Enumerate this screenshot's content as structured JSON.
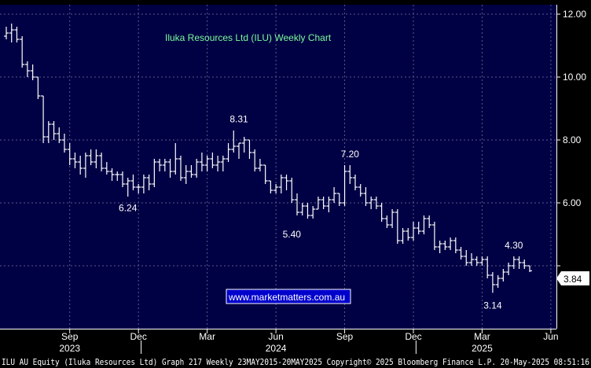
{
  "chart_data": {
    "type": "ohlc",
    "title": "Iluka Resources Ltd (ILU) Weekly Chart",
    "website": "www.marketmatters.com.au",
    "footer": "ILU AU Equity (Iluka Resources Ltd) Graph 217  Weekly 23MAY2015-20MAY2025 Copyright© 2025 Bloomberg Finance L.P. 20-May-2025 08:51:16",
    "last_value_label": "3.84",
    "ylim": [
      2.0,
      12.3
    ],
    "yticks": [
      {
        "value": 4.0,
        "label": ""
      },
      {
        "value": 6.0,
        "label": "6.00"
      },
      {
        "value": 8.0,
        "label": "8.00"
      },
      {
        "value": 10.0,
        "label": "10.00"
      },
      {
        "value": 12.0,
        "label": "12.00"
      }
    ],
    "month_ticks": [
      {
        "index": 12,
        "label": "Sep"
      },
      {
        "index": 25,
        "label": "Dec"
      },
      {
        "index": 38,
        "label": "Mar"
      },
      {
        "index": 51,
        "label": "Jun"
      },
      {
        "index": 64,
        "label": "Sep"
      },
      {
        "index": 77,
        "label": "Dec"
      },
      {
        "index": 90,
        "label": "Mar"
      },
      {
        "index": 103,
        "label": "Jun"
      }
    ],
    "year_labels": [
      {
        "index": 12,
        "label": "2023"
      },
      {
        "index": 51,
        "label": "2024"
      },
      {
        "index": 90,
        "label": "2025"
      }
    ],
    "year_separators": [
      25.5,
      77.5
    ],
    "annotations": [
      {
        "index": 23,
        "value": 6.24,
        "label": "6.24",
        "position": "below"
      },
      {
        "index": 44,
        "value": 8.31,
        "label": "8.31",
        "position": "above"
      },
      {
        "index": 54,
        "value": 5.4,
        "label": "5.40",
        "position": "below"
      },
      {
        "index": 65,
        "value": 7.2,
        "label": "7.20",
        "position": "above"
      },
      {
        "index": 92,
        "value": 3.14,
        "label": "3.14",
        "position": "below"
      },
      {
        "index": 96,
        "value": 4.3,
        "label": "4.30",
        "position": "above"
      }
    ],
    "series": [
      {
        "name": "ILU",
        "ohlc": [
          [
            11.3,
            11.6,
            11.2,
            11.4
          ],
          [
            11.4,
            11.7,
            11.1,
            11.5
          ],
          [
            11.5,
            11.6,
            11.1,
            11.2
          ],
          [
            11.2,
            11.3,
            10.3,
            10.4
          ],
          [
            10.4,
            10.5,
            10.0,
            10.2
          ],
          [
            10.2,
            10.4,
            9.9,
            10.0
          ],
          [
            10.0,
            10.0,
            9.3,
            9.4
          ],
          [
            9.4,
            9.4,
            7.9,
            8.1
          ],
          [
            8.1,
            8.6,
            7.9,
            8.5
          ],
          [
            8.5,
            8.6,
            8.0,
            8.2
          ],
          [
            8.2,
            8.4,
            7.9,
            8.0
          ],
          [
            8.0,
            8.2,
            7.6,
            7.7
          ],
          [
            7.7,
            7.9,
            7.2,
            7.4
          ],
          [
            7.4,
            7.6,
            7.1,
            7.3
          ],
          [
            7.3,
            7.5,
            6.9,
            7.1
          ],
          [
            7.1,
            7.6,
            6.8,
            7.5
          ],
          [
            7.5,
            7.7,
            7.2,
            7.3
          ],
          [
            7.3,
            7.7,
            7.1,
            7.5
          ],
          [
            7.5,
            7.6,
            7.0,
            7.1
          ],
          [
            7.1,
            7.3,
            6.9,
            7.0
          ],
          [
            7.0,
            7.1,
            6.7,
            6.9
          ],
          [
            6.9,
            7.0,
            6.7,
            6.9
          ],
          [
            6.9,
            7.0,
            6.5,
            6.6
          ],
          [
            6.6,
            6.8,
            6.2,
            6.7
          ],
          [
            6.7,
            6.9,
            6.4,
            6.5
          ],
          [
            6.5,
            6.6,
            6.3,
            6.5
          ],
          [
            6.5,
            6.9,
            6.3,
            6.8
          ],
          [
            6.8,
            6.9,
            6.4,
            6.6
          ],
          [
            6.6,
            7.4,
            6.5,
            7.3
          ],
          [
            7.3,
            7.4,
            7.0,
            7.2
          ],
          [
            7.2,
            7.4,
            7.0,
            7.3
          ],
          [
            7.3,
            7.4,
            6.8,
            7.0
          ],
          [
            7.0,
            7.9,
            6.9,
            7.4
          ],
          [
            7.4,
            7.5,
            6.7,
            6.8
          ],
          [
            6.8,
            7.2,
            6.6,
            7.0
          ],
          [
            7.0,
            7.2,
            6.8,
            6.9
          ],
          [
            6.9,
            7.4,
            6.8,
            7.3
          ],
          [
            7.3,
            7.6,
            7.0,
            7.2
          ],
          [
            7.2,
            7.5,
            7.0,
            7.4
          ],
          [
            7.4,
            7.6,
            7.1,
            7.2
          ],
          [
            7.2,
            7.5,
            7.0,
            7.3
          ],
          [
            7.3,
            7.5,
            7.0,
            7.4
          ],
          [
            7.4,
            7.9,
            7.3,
            7.7
          ],
          [
            7.7,
            8.3,
            7.6,
            7.8
          ],
          [
            7.8,
            7.9,
            7.4,
            7.9
          ],
          [
            7.9,
            8.1,
            7.6,
            8.0
          ],
          [
            8.0,
            8.0,
            7.4,
            7.6
          ],
          [
            7.6,
            7.7,
            7.0,
            7.1
          ],
          [
            7.1,
            7.4,
            7.0,
            7.2
          ],
          [
            7.2,
            7.2,
            6.6,
            6.7
          ],
          [
            6.7,
            6.7,
            6.3,
            6.4
          ],
          [
            6.4,
            6.6,
            6.3,
            6.5
          ],
          [
            6.5,
            6.9,
            6.3,
            6.8
          ],
          [
            6.8,
            6.9,
            6.4,
            6.7
          ],
          [
            6.7,
            6.8,
            6.0,
            6.1
          ],
          [
            6.1,
            6.3,
            5.6,
            5.7
          ],
          [
            5.7,
            6.0,
            5.6,
            5.9
          ],
          [
            5.9,
            6.0,
            5.5,
            5.6
          ],
          [
            5.6,
            5.9,
            5.5,
            5.8
          ],
          [
            5.8,
            6.2,
            5.8,
            6.1
          ],
          [
            6.1,
            6.2,
            5.8,
            5.9
          ],
          [
            5.9,
            6.2,
            5.7,
            6.1
          ],
          [
            6.1,
            6.5,
            6.0,
            6.3
          ],
          [
            6.3,
            6.3,
            5.9,
            6.0
          ],
          [
            6.0,
            7.2,
            5.9,
            7.0
          ],
          [
            7.0,
            7.2,
            6.6,
            6.8
          ],
          [
            6.8,
            6.9,
            6.4,
            6.5
          ],
          [
            6.5,
            6.6,
            6.2,
            6.3
          ],
          [
            6.3,
            6.5,
            5.9,
            6.0
          ],
          [
            6.0,
            6.2,
            5.8,
            6.1
          ],
          [
            6.1,
            6.2,
            5.8,
            5.9
          ],
          [
            5.9,
            6.0,
            5.4,
            5.5
          ],
          [
            5.5,
            5.6,
            5.2,
            5.3
          ],
          [
            5.3,
            5.8,
            5.2,
            5.7
          ],
          [
            5.7,
            5.8,
            4.7,
            4.8
          ],
          [
            4.8,
            5.2,
            4.7,
            5.1
          ],
          [
            5.1,
            5.2,
            4.8,
            4.9
          ],
          [
            4.9,
            5.4,
            4.8,
            5.2
          ],
          [
            5.2,
            5.4,
            5.0,
            5.1
          ],
          [
            5.1,
            5.6,
            5.0,
            5.5
          ],
          [
            5.5,
            5.6,
            5.2,
            5.3
          ],
          [
            5.3,
            5.4,
            4.5,
            4.6
          ],
          [
            4.6,
            4.8,
            4.4,
            4.7
          ],
          [
            4.7,
            4.8,
            4.5,
            4.6
          ],
          [
            4.6,
            4.9,
            4.5,
            4.8
          ],
          [
            4.8,
            4.9,
            4.4,
            4.5
          ],
          [
            4.5,
            4.6,
            4.2,
            4.3
          ],
          [
            4.3,
            4.5,
            4.0,
            4.1
          ],
          [
            4.1,
            4.4,
            4.0,
            4.2
          ],
          [
            4.2,
            4.3,
            4.0,
            4.1
          ],
          [
            4.1,
            4.3,
            4.0,
            4.2
          ],
          [
            4.2,
            4.3,
            3.6,
            3.7
          ],
          [
            3.7,
            3.8,
            3.14,
            3.4
          ],
          [
            3.4,
            3.7,
            3.3,
            3.6
          ],
          [
            3.6,
            3.9,
            3.5,
            3.8
          ],
          [
            3.8,
            4.1,
            3.7,
            4.0
          ],
          [
            4.0,
            4.3,
            3.9,
            4.2
          ],
          [
            4.2,
            4.3,
            3.9,
            4.1
          ],
          [
            4.1,
            4.2,
            3.9,
            4.0
          ],
          [
            4.0,
            4.0,
            3.8,
            3.84
          ]
        ]
      }
    ]
  }
}
